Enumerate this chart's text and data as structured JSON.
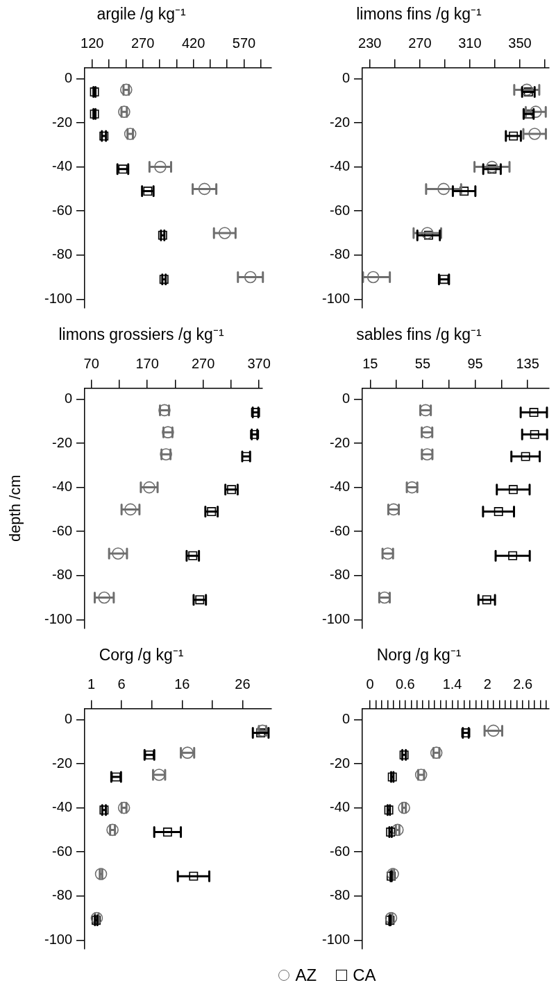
{
  "chart_data": [
    {
      "type": "scatter",
      "title": "argile /g kg⁻¹",
      "xlim": [
        98,
        650
      ],
      "xticks": [
        120,
        {
          "value": 170,
          "label": null
        },
        {
          "value": 220,
          "label": null
        },
        270,
        {
          "value": 320,
          "label": null
        },
        {
          "value": 370,
          "label": null
        },
        420,
        {
          "value": 470,
          "label": null
        },
        {
          "value": 520,
          "label": null
        },
        570,
        {
          "value": 620,
          "label": null
        }
      ],
      "ylim": [
        -104,
        5
      ],
      "yticks": [
        0,
        -20,
        -40,
        -60,
        -80,
        -100
      ],
      "series": [
        {
          "color": "#6e6e6e",
          "marker": "circle",
          "x": [
            221,
            215,
            233,
            322,
            453,
            513,
            589
          ],
          "values": [
            -5,
            -15,
            -25,
            -40,
            -50,
            -70,
            -90
          ],
          "xerrors": [
            8,
            8,
            8,
            32,
            35,
            32,
            37
          ]
        },
        {
          "color": "#000000",
          "marker": "square",
          "x": [
            127,
            127,
            155,
            211,
            285,
            329,
            333
          ],
          "values": [
            -6,
            -16,
            -26,
            -41,
            -51,
            -71,
            -91
          ],
          "xerrors": [
            3,
            3,
            6,
            16,
            17,
            5,
            5
          ]
        }
      ]
    },
    {
      "type": "scatter",
      "title": "limons fins /g kg⁻¹",
      "xlim": [
        224,
        373
      ],
      "xticks": [
        230,
        {
          "value": 250,
          "label": null
        },
        270,
        {
          "value": 290,
          "label": null
        },
        310,
        {
          "value": 330,
          "label": null
        },
        350,
        {
          "value": 370,
          "label": null
        }
      ],
      "ylim": [
        -104,
        5
      ],
      "yticks": [
        0,
        -20,
        -40,
        -60,
        -80,
        -100
      ],
      "series": [
        {
          "color": "#6e6e6e",
          "marker": "circle",
          "x": [
            355.5,
            362.7,
            361.8,
            327.7,
            289,
            276,
            232.7
          ],
          "values": [
            -5,
            -15,
            -25,
            -40,
            -50,
            -70,
            -90
          ],
          "xerrors": [
            10,
            8,
            9,
            14,
            14,
            11,
            [
              224.5,
              246
            ]
          ]
        },
        {
          "color": "#000000",
          "marker": "square",
          "x": [
            356.8,
            357,
            344.8,
            327.7,
            305.4,
            277,
            289.3
          ],
          "values": [
            -6,
            -16,
            -26,
            -41,
            -51,
            -71,
            -91
          ],
          "xerrors": [
            5,
            4,
            6,
            7,
            9,
            9,
            4
          ]
        }
      ]
    },
    {
      "type": "scatter",
      "title": "limons grossiers /g kg⁻¹",
      "ylabel": "depth /cm",
      "xlim": [
        58,
        376
      ],
      "xticks": [
        70,
        {
          "value": 120,
          "label": null
        },
        170,
        {
          "value": 220,
          "label": null
        },
        270,
        {
          "value": 320,
          "label": null
        },
        370
      ],
      "ylim": [
        -104,
        5
      ],
      "yticks": [
        0,
        -20,
        -40,
        -60,
        -80,
        -100
      ],
      "series": [
        {
          "color": "#6e6e6e",
          "marker": "circle",
          "x": [
            200.8,
            207,
            203.5,
            173.5,
            140,
            117.7,
            93
          ],
          "values": [
            -5,
            -15,
            -25,
            -40,
            -50,
            -70,
            -90
          ],
          "xerrors": [
            8,
            8,
            8,
            15,
            16,
            16,
            17
          ]
        },
        {
          "color": "#000000",
          "marker": "square",
          "x": [
            363.8,
            362,
            347,
            320.8,
            285,
            251.5,
            264
          ],
          "values": [
            -6,
            -16,
            -26,
            -41,
            -51,
            -71,
            -91
          ],
          "xerrors": [
            5,
            5,
            7,
            11,
            11,
            11,
            11
          ]
        }
      ]
    },
    {
      "type": "scatter",
      "title": "sables fins /g kg⁻¹",
      "xlim": [
        9,
        151
      ],
      "xticks": [
        15,
        {
          "value": 35,
          "label": null
        },
        55,
        {
          "value": 75,
          "label": null
        },
        95,
        {
          "value": 115,
          "label": null
        },
        135
      ],
      "ylim": [
        -104,
        5
      ],
      "yticks": [
        0,
        -20,
        -40,
        -60,
        -80,
        -100
      ],
      "series": [
        {
          "color": "#6e6e6e",
          "marker": "circle",
          "x": [
            57.2,
            58.3,
            58.4,
            46.9,
            32.8,
            28.4,
            25.9
          ],
          "values": [
            -5,
            -15,
            -25,
            -40,
            -50,
            -70,
            -90
          ],
          "xerrors": [
            4,
            4,
            4,
            4,
            4,
            4,
            4
          ]
        },
        {
          "color": "#000000",
          "marker": "square",
          "x": [
            139.7,
            140.3,
            133.4,
            124,
            112.8,
            123.6,
            103.8
          ],
          "values": [
            -6,
            -16,
            -26,
            -41,
            -51,
            -71,
            -91
          ],
          "xerrors": [
            10,
            9.5,
            10.8,
            12.5,
            11.8,
            13,
            6.3
          ]
        }
      ]
    },
    {
      "type": "scatter",
      "title": "Corg /g kg⁻¹",
      "xlim": [
        -0.1,
        30.7
      ],
      "xticks": [
        1,
        6,
        {
          "value": 11,
          "label": null
        },
        16,
        {
          "value": 21,
          "label": null
        },
        26
      ],
      "ylim": [
        -104,
        5
      ],
      "yticks": [
        0,
        -20,
        -40,
        -60,
        -80,
        -100
      ],
      "series": [
        {
          "color": "#6e6e6e",
          "marker": "circle",
          "x": [
            29.3,
            16.9,
            12.2,
            6.4,
            4.5,
            2.6,
            1.9
          ],
          "values": [
            -5,
            -15,
            -25,
            -40,
            -50,
            -70,
            -90
          ],
          "xerrors": [
            0.6,
            1.1,
            1.0,
            0.4,
            0.4,
            0.2,
            0.3
          ]
        },
        {
          "color": "#000000",
          "marker": "square",
          "x": [
            29.0,
            10.6,
            5.1,
            3.1,
            13.6,
            17.9,
            1.8
          ],
          "values": [
            -6,
            -16,
            -26,
            -41,
            -51,
            -71,
            -91
          ],
          "xerrors": [
            1.3,
            0.8,
            0.8,
            0.3,
            2.2,
            2.6,
            0.2
          ]
        }
      ]
    },
    {
      "type": "scatter",
      "title": "Norg /g kg⁻¹",
      "legend": "bottom",
      "xlim": [
        -0.13,
        3.04
      ],
      "xticks": [
        0,
        {
          "value": 0.1,
          "label": null
        },
        {
          "value": 0.2,
          "label": null
        },
        {
          "value": 0.3,
          "label": null
        },
        {
          "value": 0.4,
          "label": null
        },
        {
          "value": 0.5,
          "label": null
        },
        0.6,
        {
          "value": 0.7,
          "label": null
        },
        {
          "value": 0.8,
          "label": null
        },
        {
          "value": 0.9,
          "label": null
        },
        {
          "value": 1.0,
          "label": null
        },
        {
          "value": 1.1,
          "label": null
        },
        {
          "value": 1.2,
          "label": null
        },
        {
          "value": 1.3,
          "label": null
        },
        1.4,
        {
          "value": 1.5,
          "label": null
        },
        {
          "value": 1.6,
          "label": null
        },
        {
          "value": 1.7,
          "label": null
        },
        {
          "value": 1.8,
          "label": null
        },
        {
          "value": 1.9,
          "label": null
        },
        2,
        {
          "value": 2.1,
          "label": null
        },
        {
          "value": 2.2,
          "label": null
        },
        {
          "value": 2.3,
          "label": null
        },
        {
          "value": 2.4,
          "label": null
        },
        {
          "value": 2.5,
          "label": null
        },
        2.6,
        {
          "value": 2.7,
          "label": null
        },
        {
          "value": 2.8,
          "label": null
        },
        {
          "value": 2.9,
          "label": null
        },
        {
          "value": 3.0,
          "label": null
        }
      ],
      "ylim": [
        -104,
        5
      ],
      "yticks": [
        0,
        -20,
        -40,
        -60,
        -80,
        -100
      ],
      "series": [
        {
          "name": "AZ",
          "color": "#6e6e6e",
          "marker": "circle",
          "x": [
            2.1,
            1.13,
            0.87,
            0.58,
            0.47,
            0.39,
            0.36
          ],
          "values": [
            -5,
            -15,
            -25,
            -40,
            -50,
            -70,
            -90
          ],
          "xerrors": [
            0.15,
            0.05,
            0.05,
            0.03,
            0.03,
            0.02,
            0.02
          ]
        },
        {
          "name": "CA",
          "color": "#000000",
          "marker": "square",
          "x": [
            1.63,
            0.58,
            0.38,
            0.32,
            0.35,
            0.36,
            0.34
          ],
          "values": [
            -6,
            -16,
            -26,
            -41,
            -51,
            -71,
            -91
          ],
          "xerrors": [
            0.05,
            0.03,
            0.02,
            0.02,
            0.02,
            0.01,
            0.01
          ]
        }
      ]
    }
  ]
}
